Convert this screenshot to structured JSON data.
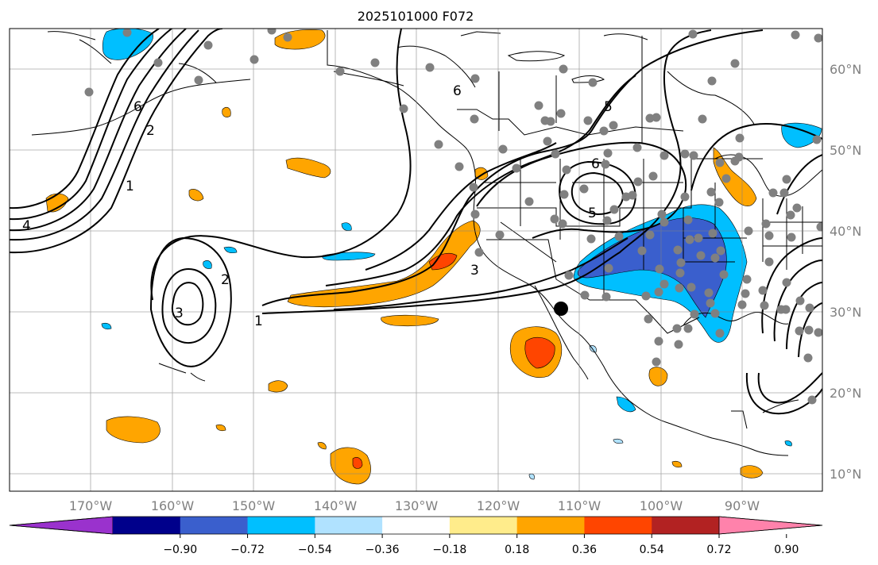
{
  "title": "2025101000 F072",
  "map": {
    "lon_range": [
      -180,
      -80
    ],
    "lat_range": [
      8,
      65
    ],
    "gridlines": true,
    "lon_labels": [
      "170°W",
      "160°W",
      "150°W",
      "140°W",
      "130°W",
      "120°W",
      "110°W",
      "100°W",
      "90°W"
    ],
    "lat_labels": [
      "60°N",
      "50°N",
      "40°N",
      "30°N",
      "20°N",
      "10°N"
    ],
    "contour_labels": [
      "4",
      "6",
      "2",
      "1",
      "1",
      "2",
      "3",
      "3",
      "6",
      "5",
      "5",
      "6"
    ],
    "station_marker": {
      "lon": -112.3,
      "lat": 30.4,
      "color": "#000000"
    },
    "station_dot_color": "#808080"
  },
  "colorbar": {
    "ticks": [
      "−0.90",
      "−0.72",
      "−0.54",
      "−0.36",
      "−0.18",
      "0.18",
      "0.36",
      "0.54",
      "0.72",
      "0.90"
    ],
    "colors": [
      "#9a32cd",
      "#00008b",
      "#3a5fcd",
      "#00bfff",
      "#b0e2ff",
      "#ffffff",
      "#ffec8b",
      "#ffa500",
      "#ff4500",
      "#b22222",
      "#ff82ab"
    ]
  }
}
